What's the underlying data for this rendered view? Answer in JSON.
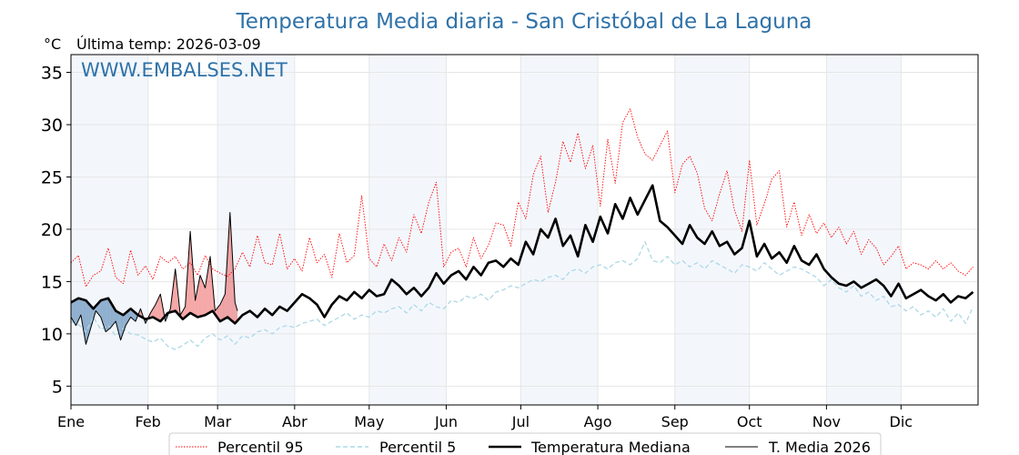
{
  "chart_data": {
    "type": "line",
    "title": "Temperatura Media diaria - San Cristóbal de La Laguna",
    "unit_label": "°C",
    "last_temp_label": "Última temp: 2026-03-09",
    "watermark": "WWW.EMBALSES.NET",
    "ylim": [
      3.2,
      36.7
    ],
    "yticks": [
      5,
      10,
      15,
      20,
      25,
      30,
      35
    ],
    "xlim": [
      1,
      366
    ],
    "months": [
      {
        "label": "Ene",
        "day": 1
      },
      {
        "label": "Feb",
        "day": 32
      },
      {
        "label": "Mar",
        "day": 60
      },
      {
        "label": "Abr",
        "day": 91
      },
      {
        "label": "May",
        "day": 121
      },
      {
        "label": "Jun",
        "day": 152
      },
      {
        "label": "Jul",
        "day": 182
      },
      {
        "label": "Ago",
        "day": 213
      },
      {
        "label": "Sep",
        "day": 244
      },
      {
        "label": "Oct",
        "day": 274
      },
      {
        "label": "Nov",
        "day": 305
      },
      {
        "label": "Dic",
        "day": 335
      }
    ],
    "grid": true,
    "legend_position": "bottom-center",
    "colors": {
      "p95": "#ff0000",
      "p5": "#add8e6",
      "median": "#000000",
      "current": "#000000",
      "above": "#e8393a",
      "below": "#3b73a8",
      "band": "#dde9f5"
    },
    "series": [
      {
        "key": "p95",
        "name": "Percentil 95",
        "style": "dotted",
        "x": [
          1,
          4,
          7,
          10,
          13,
          16,
          19,
          22,
          25,
          28,
          31,
          34,
          37,
          40,
          43,
          46,
          49,
          52,
          55,
          58,
          61,
          64,
          67,
          70,
          73,
          76,
          79,
          82,
          85,
          88,
          91,
          94,
          97,
          100,
          103,
          106,
          109,
          112,
          115,
          118,
          121,
          124,
          127,
          130,
          133,
          136,
          139,
          142,
          145,
          148,
          151,
          154,
          157,
          160,
          163,
          166,
          169,
          172,
          175,
          178,
          181,
          184,
          187,
          190,
          193,
          196,
          199,
          202,
          205,
          208,
          211,
          214,
          217,
          220,
          223,
          226,
          229,
          232,
          235,
          238,
          241,
          244,
          247,
          250,
          253,
          256,
          259,
          262,
          265,
          268,
          271,
          274,
          277,
          280,
          283,
          286,
          289,
          292,
          295,
          298,
          301,
          304,
          307,
          310,
          313,
          316,
          319,
          322,
          325,
          328,
          331,
          334,
          337,
          340,
          343,
          346,
          349,
          352,
          355,
          358,
          361,
          364
        ],
        "y": [
          16.8,
          17.5,
          14.5,
          15.6,
          16.0,
          18.2,
          15.4,
          14.8,
          18.0,
          15.6,
          16.5,
          15.2,
          17.4,
          16.8,
          17.4,
          16.2,
          16.8,
          15.6,
          17.5,
          16.2,
          15.8,
          15.5,
          16.2,
          17.8,
          16.4,
          19.4,
          16.8,
          16.6,
          19.6,
          16.2,
          17.2,
          16.0,
          19.2,
          16.8,
          17.6,
          15.4,
          19.6,
          16.8,
          17.5,
          23.2,
          17.2,
          16.4,
          18.6,
          17.0,
          19.2,
          17.8,
          21.4,
          19.6,
          22.6,
          24.5,
          16.4,
          17.8,
          18.2,
          16.4,
          19.2,
          17.2,
          18.5,
          20.6,
          20.4,
          18.4,
          22.6,
          21.0,
          25.2,
          27.0,
          21.6,
          24.5,
          28.4,
          26.4,
          29.2,
          25.8,
          28.0,
          22.2,
          28.6,
          24.4,
          30.2,
          31.5,
          28.8,
          27.2,
          26.6,
          28.0,
          29.4,
          23.5,
          26.2,
          27.0,
          25.4,
          22.0,
          20.8,
          23.4,
          25.6,
          21.8,
          19.8,
          26.6,
          20.4,
          22.4,
          24.8,
          25.6,
          20.2,
          22.6,
          19.4,
          21.4,
          19.6,
          20.6,
          19.2,
          20.2,
          18.6,
          19.8,
          17.6,
          19.0,
          18.2,
          16.6,
          17.4,
          18.4,
          16.2,
          16.8,
          16.6,
          16.2,
          17.0,
          16.2,
          16.8,
          16.0,
          15.6,
          16.4
        ]
      },
      {
        "key": "p5",
        "name": "Percentil 5",
        "style": "dashed",
        "x": [
          1,
          4,
          7,
          10,
          13,
          16,
          19,
          22,
          25,
          28,
          31,
          34,
          37,
          40,
          43,
          46,
          49,
          52,
          55,
          58,
          61,
          64,
          67,
          70,
          73,
          76,
          79,
          82,
          85,
          88,
          91,
          94,
          97,
          100,
          103,
          106,
          109,
          112,
          115,
          118,
          121,
          124,
          127,
          130,
          133,
          136,
          139,
          142,
          145,
          148,
          151,
          154,
          157,
          160,
          163,
          166,
          169,
          172,
          175,
          178,
          181,
          184,
          187,
          190,
          193,
          196,
          199,
          202,
          205,
          208,
          211,
          214,
          217,
          220,
          223,
          226,
          229,
          232,
          235,
          238,
          241,
          244,
          247,
          250,
          253,
          256,
          259,
          262,
          265,
          268,
          271,
          274,
          277,
          280,
          283,
          286,
          289,
          292,
          295,
          298,
          301,
          304,
          307,
          310,
          313,
          316,
          319,
          322,
          325,
          328,
          331,
          334,
          337,
          340,
          343,
          346,
          349,
          352,
          355,
          358,
          361,
          364
        ],
        "y": [
          11.2,
          10.9,
          10.2,
          11.6,
          10.4,
          10.8,
          9.8,
          10.5,
          10.0,
          9.9,
          9.5,
          9.2,
          9.6,
          8.8,
          8.5,
          8.9,
          9.4,
          8.8,
          9.6,
          10.0,
          9.4,
          9.8,
          9.0,
          9.8,
          9.6,
          10.2,
          10.4,
          10.0,
          10.6,
          10.8,
          10.6,
          11.0,
          11.2,
          11.4,
          10.8,
          11.2,
          11.6,
          12.0,
          11.4,
          11.8,
          11.6,
          12.2,
          12.0,
          12.4,
          12.6,
          12.0,
          12.8,
          12.2,
          13.0,
          12.6,
          12.4,
          13.2,
          13.0,
          13.6,
          13.4,
          13.8,
          13.2,
          14.0,
          14.2,
          14.6,
          14.4,
          14.8,
          15.2,
          15.0,
          15.4,
          15.6,
          15.2,
          16.0,
          16.2,
          15.8,
          16.4,
          16.6,
          16.2,
          16.8,
          17.0,
          16.6,
          17.2,
          18.8,
          17.0,
          16.8,
          17.4,
          16.6,
          17.0,
          16.4,
          16.8,
          16.2,
          17.0,
          16.6,
          16.2,
          15.8,
          16.6,
          16.4,
          16.0,
          16.8,
          16.2,
          15.6,
          16.0,
          16.4,
          16.2,
          15.8,
          15.4,
          14.6,
          15.2,
          14.4,
          14.0,
          14.6,
          13.6,
          14.0,
          13.2,
          13.6,
          12.6,
          12.8,
          12.2,
          12.6,
          11.8,
          12.2,
          11.6,
          12.4,
          11.2,
          12.0,
          11.0,
          12.6
        ]
      },
      {
        "key": "median",
        "name": "Temperatura Mediana",
        "style": "solid-thick",
        "x": [
          1,
          4,
          7,
          10,
          13,
          16,
          19,
          22,
          25,
          28,
          31,
          34,
          37,
          40,
          43,
          46,
          49,
          52,
          55,
          58,
          61,
          64,
          67,
          70,
          73,
          76,
          79,
          82,
          85,
          88,
          91,
          94,
          97,
          100,
          103,
          106,
          109,
          112,
          115,
          118,
          121,
          124,
          127,
          130,
          133,
          136,
          139,
          142,
          145,
          148,
          151,
          154,
          157,
          160,
          163,
          166,
          169,
          172,
          175,
          178,
          181,
          184,
          187,
          190,
          193,
          196,
          199,
          202,
          205,
          208,
          211,
          214,
          217,
          220,
          223,
          226,
          229,
          232,
          235,
          238,
          241,
          244,
          247,
          250,
          253,
          256,
          259,
          262,
          265,
          268,
          271,
          274,
          277,
          280,
          283,
          286,
          289,
          292,
          295,
          298,
          301,
          304,
          307,
          310,
          313,
          316,
          319,
          322,
          325,
          328,
          331,
          334,
          337,
          340,
          343,
          346,
          349,
          352,
          355,
          358,
          361,
          364
        ],
        "y": [
          13.0,
          13.4,
          13.2,
          12.4,
          13.2,
          13.4,
          12.2,
          11.8,
          12.4,
          11.8,
          11.4,
          11.6,
          11.2,
          12.0,
          12.2,
          11.4,
          12.0,
          11.6,
          11.8,
          12.2,
          11.2,
          11.6,
          11.0,
          11.8,
          12.2,
          11.6,
          12.4,
          11.8,
          12.6,
          12.2,
          13.0,
          13.8,
          13.4,
          12.8,
          11.6,
          12.8,
          13.6,
          13.2,
          14.0,
          13.4,
          14.2,
          13.6,
          13.8,
          15.2,
          14.6,
          13.8,
          14.4,
          13.6,
          14.4,
          15.8,
          14.8,
          15.6,
          16.0,
          15.2,
          16.4,
          15.6,
          16.8,
          17.0,
          16.4,
          17.2,
          16.6,
          18.8,
          17.6,
          20.0,
          19.2,
          21.0,
          18.4,
          19.4,
          17.4,
          20.4,
          18.8,
          21.2,
          19.6,
          22.4,
          21.0,
          23.0,
          21.4,
          22.8,
          24.2,
          20.8,
          20.2,
          19.4,
          18.6,
          20.4,
          19.2,
          18.6,
          19.8,
          18.4,
          18.8,
          17.6,
          18.2,
          20.8,
          17.4,
          18.6,
          17.2,
          17.8,
          16.8,
          18.4,
          17.0,
          16.6,
          17.6,
          16.2,
          15.4,
          14.8,
          14.6,
          15.0,
          14.4,
          14.8,
          15.2,
          14.6,
          13.6,
          14.8,
          13.4,
          13.8,
          14.2,
          13.6,
          13.2,
          13.8,
          13.0,
          13.6,
          13.4,
          14.0
        ]
      },
      {
        "key": "current",
        "name": "T. Media 2026",
        "style": "solid-thin",
        "x": [
          1,
          3,
          5,
          7,
          9,
          11,
          13,
          15,
          17,
          19,
          21,
          23,
          25,
          27,
          29,
          31,
          33,
          35,
          37,
          39,
          41,
          43,
          45,
          47,
          49,
          51,
          53,
          55,
          57,
          59,
          61,
          63,
          65,
          67,
          68
        ],
        "y": [
          11.6,
          10.8,
          11.8,
          9.0,
          10.6,
          12.2,
          11.6,
          10.2,
          10.6,
          11.2,
          9.4,
          10.8,
          11.6,
          11.2,
          12.4,
          11.0,
          12.0,
          12.8,
          13.8,
          11.2,
          12.4,
          16.2,
          11.8,
          12.6,
          19.8,
          13.2,
          15.6,
          14.4,
          17.4,
          12.2,
          12.8,
          13.8,
          21.6,
          13.0,
          12.2
        ]
      }
    ]
  },
  "legend": [
    {
      "key": "p95",
      "label": "Percentil 95"
    },
    {
      "key": "p5",
      "label": "Percentil 5"
    },
    {
      "key": "median",
      "label": "Temperatura Mediana"
    },
    {
      "key": "current",
      "label": "T. Media 2026"
    }
  ]
}
